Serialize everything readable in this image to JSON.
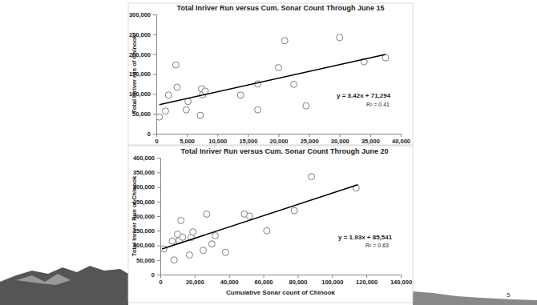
{
  "page_number": 5,
  "chart_data": [
    {
      "type": "scatter",
      "title": "Total Inriver Run versus Cum. Sonar Count Through June 15",
      "y_label": "Total Inriver run of Chinook",
      "annotations": [
        "y = 3.42x + 71,294",
        "R² = 0.41"
      ],
      "xlim": [
        0,
        40000
      ],
      "xticks": [
        0,
        {
          "value": 5000,
          "label": "5,000"
        },
        {
          "value": 10000,
          "label": "10,000"
        },
        {
          "value": 15000,
          "label": "15,000"
        },
        {
          "value": 20000,
          "label": "20,000"
        },
        {
          "value": 25000,
          "label": "25,000"
        },
        {
          "value": 30000,
          "label": "30,000"
        },
        {
          "value": 35000,
          "label": "35,000"
        },
        {
          "value": 40000,
          "label": "40,000"
        }
      ],
      "ylim": [
        0,
        300000
      ],
      "yticks": [
        0,
        {
          "value": 50000,
          "label": "50,000"
        },
        {
          "value": 100000,
          "label": "100,000"
        },
        {
          "value": 150000,
          "label": "150,000"
        },
        {
          "value": 200000,
          "label": "200,000"
        },
        {
          "value": 250000,
          "label": "250,000"
        },
        {
          "value": 300000,
          "label": "300,000"
        }
      ],
      "grid": false,
      "series": [
        {
          "type": "scatter",
          "color": "#808080",
          "marker": "open-circle",
          "x": [
            500,
            1500,
            2000,
            3200,
            3400,
            4900,
            5200,
            7200,
            7400,
            7600,
            8000,
            13800,
            16600,
            16600,
            20000,
            21000,
            22500,
            24500,
            30000,
            34000,
            37500
          ],
          "values": [
            42000,
            57000,
            97000,
            173000,
            117000,
            60000,
            81000,
            46000,
            113000,
            98000,
            107000,
            97000,
            125000,
            60000,
            166000,
            234000,
            124000,
            70000,
            242000,
            181000,
            191000
          ]
        },
        {
          "type": "line",
          "color": "#000000",
          "line_style": "solid",
          "x": [
            500,
            37500
          ],
          "values": [
            73000,
            199500
          ]
        }
      ]
    },
    {
      "type": "scatter",
      "title": "Total Inriver Run versus Cum. Sonar Count Through June 20",
      "x_label": "Cumulative Sonar count of Chinook",
      "y_label": "Total Inriver Run of Chinook",
      "annotations": [
        "y = 1.93x + 85,541",
        "R² = 0.63"
      ],
      "xlim": [
        0,
        140000
      ],
      "xticks": [
        0,
        {
          "value": 20000,
          "label": "20,000"
        },
        {
          "value": 40000,
          "label": "40,000"
        },
        {
          "value": 60000,
          "label": "60,000"
        },
        {
          "value": 80000,
          "label": "80,000"
        },
        {
          "value": 100000,
          "label": "100,000"
        },
        {
          "value": 120000,
          "label": "120,000"
        },
        {
          "value": 140000,
          "label": "140,000"
        }
      ],
      "ylim": [
        0,
        400000
      ],
      "yticks": [
        0,
        {
          "value": 50000,
          "label": "50,000"
        },
        {
          "value": 100000,
          "label": "100,000"
        },
        {
          "value": 150000,
          "label": "150,000"
        },
        {
          "value": 200000,
          "label": "200,000"
        },
        {
          "value": 250000,
          "label": "250,000"
        },
        {
          "value": 300000,
          "label": "300,000"
        },
        {
          "value": 350000,
          "label": "350,000"
        },
        {
          "value": 400000,
          "label": "400,000"
        }
      ],
      "grid": false,
      "series": [
        {
          "type": "scatter",
          "color": "#808080",
          "marker": "open-circle",
          "x": [
            2000,
            7000,
            8000,
            10000,
            11000,
            12000,
            13000,
            17000,
            18000,
            19000,
            25000,
            27000,
            30000,
            32000,
            38000,
            49000,
            52000,
            62000,
            78000,
            88000,
            114000
          ],
          "values": [
            88000,
            115000,
            50000,
            138000,
            116000,
            185000,
            128000,
            67000,
            127000,
            146000,
            83000,
            207000,
            105000,
            133000,
            76000,
            207000,
            200000,
            150000,
            219000,
            335000,
            296000
          ]
        },
        {
          "type": "line",
          "color": "#000000",
          "line_style": "solid",
          "x": [
            1000,
            115000
          ],
          "values": [
            87500,
            307500
          ]
        }
      ]
    }
  ]
}
